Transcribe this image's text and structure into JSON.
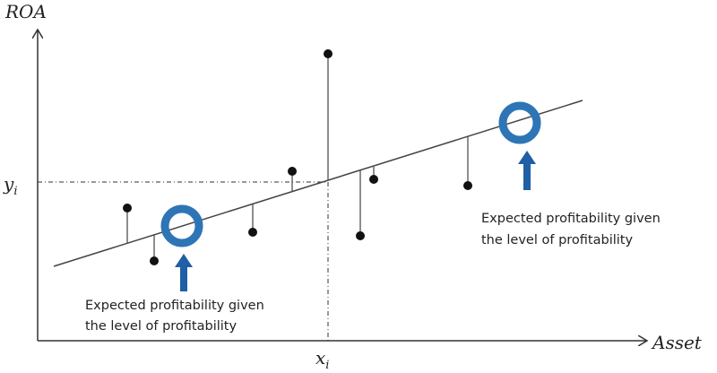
{
  "axes": {
    "y_label": "ROA",
    "x_label": "Asset",
    "y_marker": {
      "base": "y",
      "sub": "i"
    },
    "x_marker": {
      "base": "x",
      "sub": "i"
    }
  },
  "annotations": [
    {
      "lines": [
        "Expected profitability given",
        "the level of profitability"
      ]
    },
    {
      "lines": [
        "Expected profitability given",
        "the level of profitability"
      ]
    }
  ]
}
